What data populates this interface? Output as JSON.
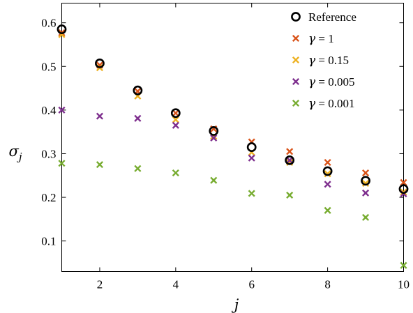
{
  "chart_data": {
    "type": "scatter",
    "xlabel": "j",
    "ylabel": "σ_j",
    "xlim": [
      1,
      10
    ],
    "ylim": [
      0.03,
      0.645
    ],
    "xticks": [
      2,
      4,
      6,
      8,
      10
    ],
    "yticks": [
      0.1,
      0.2,
      0.3,
      0.4,
      0.5,
      0.6
    ],
    "xtick_labels": [
      "2",
      "4",
      "6",
      "8",
      "10"
    ],
    "ytick_labels": [
      "0.1",
      "0.2",
      "0.3",
      "0.4",
      "0.5",
      "0.6"
    ],
    "legend_position": "top-right",
    "grid": false,
    "series": [
      {
        "name": "Reference",
        "marker": "circle",
        "color": "#000000",
        "x": [
          1,
          2,
          3,
          4,
          5,
          6,
          7,
          8,
          9,
          10
        ],
        "y": [
          0.585,
          0.507,
          0.445,
          0.393,
          0.352,
          0.315,
          0.285,
          0.26,
          0.238,
          0.219
        ]
      },
      {
        "name": "γ = 1",
        "marker": "x",
        "color": "#d95319",
        "x": [
          1,
          2,
          3,
          4,
          5,
          6,
          7,
          8,
          9,
          10
        ],
        "y": [
          0.577,
          0.503,
          0.443,
          0.393,
          0.357,
          0.327,
          0.305,
          0.28,
          0.256,
          0.234
        ]
      },
      {
        "name": "γ = 0.15",
        "marker": "x",
        "color": "#edb120",
        "x": [
          1,
          2,
          3,
          4,
          5,
          6,
          7,
          8,
          9,
          10
        ],
        "y": [
          0.573,
          0.497,
          0.432,
          0.378,
          0.34,
          0.303,
          0.28,
          0.254,
          0.232,
          0.212
        ]
      },
      {
        "name": "γ = 0.005",
        "marker": "x",
        "color": "#7e2f8e",
        "x": [
          1,
          2,
          3,
          4,
          5,
          6,
          7,
          8,
          9,
          10
        ],
        "y": [
          0.4,
          0.386,
          0.381,
          0.365,
          0.336,
          0.29,
          0.285,
          0.23,
          0.21,
          0.208
        ]
      },
      {
        "name": "γ = 0.001",
        "marker": "x",
        "color": "#77ac30",
        "x": [
          1,
          2,
          3,
          4,
          5,
          6,
          7,
          8,
          9,
          10
        ],
        "y": [
          0.278,
          0.275,
          0.266,
          0.256,
          0.239,
          0.209,
          0.205,
          0.17,
          0.154,
          0.044
        ]
      }
    ]
  }
}
